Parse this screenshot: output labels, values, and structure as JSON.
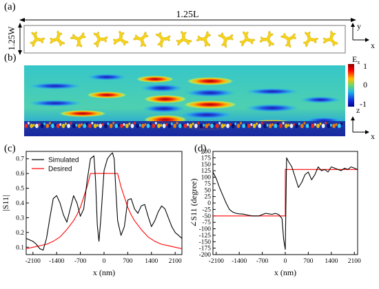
{
  "panel_a": {
    "letter": "(a)",
    "width_label": "1.25L",
    "height_label": "1.25W",
    "axis_y": "y",
    "axis_x": "x",
    "element_count": 15,
    "element_color": "#f4d21e"
  },
  "panel_b": {
    "letter": "(b)",
    "colorbar_title": "E",
    "colorbar_sub": "x",
    "colorbar_ticks": [
      "1",
      "0",
      "-1"
    ],
    "axis_z": "z",
    "axis_x": "x"
  },
  "chart_data": [
    {
      "panel": "(c)",
      "type": "line",
      "xlabel": "x (nm)",
      "ylabel": "|S11|",
      "xlim": [
        -2300,
        2300
      ],
      "ylim": [
        0.05,
        0.75
      ],
      "xticks": [
        -2100,
        -1400,
        -700,
        0,
        700,
        1400,
        2100
      ],
      "xtick_labels": [
        "-2100",
        "-1400",
        "-700",
        "0",
        "700",
        "1400",
        "2100"
      ],
      "yticks": [
        0.1,
        0.2,
        0.3,
        0.4,
        0.5,
        0.6,
        0.7
      ],
      "ytick_labels": [
        "0.1",
        "0.2",
        "0.3",
        "0.4",
        "0.5",
        "0.6",
        "0.7"
      ],
      "legend": "top-left",
      "series": [
        {
          "name": "Simulated",
          "color": "#000000",
          "x": [
            -2300,
            -2200,
            -2100,
            -2000,
            -1900,
            -1800,
            -1700,
            -1600,
            -1500,
            -1400,
            -1300,
            -1200,
            -1100,
            -1000,
            -900,
            -800,
            -700,
            -600,
            -500,
            -400,
            -300,
            -250,
            -200,
            -150,
            -100,
            0,
            100,
            200,
            250,
            300,
            350,
            400,
            500,
            600,
            700,
            800,
            900,
            1000,
            1100,
            1200,
            1300,
            1400,
            1500,
            1600,
            1700,
            1800,
            1900,
            2000,
            2100,
            2200,
            2300
          ],
          "y": [
            0.16,
            0.15,
            0.14,
            0.12,
            0.09,
            0.08,
            0.16,
            0.3,
            0.43,
            0.45,
            0.4,
            0.32,
            0.27,
            0.36,
            0.45,
            0.4,
            0.31,
            0.36,
            0.55,
            0.7,
            0.72,
            0.55,
            0.25,
            0.14,
            0.28,
            0.62,
            0.7,
            0.73,
            0.74,
            0.7,
            0.48,
            0.28,
            0.18,
            0.24,
            0.42,
            0.43,
            0.36,
            0.33,
            0.38,
            0.39,
            0.31,
            0.24,
            0.28,
            0.34,
            0.38,
            0.36,
            0.3,
            0.24,
            0.2,
            0.18,
            0.16
          ]
        },
        {
          "name": "Desired",
          "color": "#ff0000",
          "x": [
            -2300,
            -2100,
            -1900,
            -1700,
            -1500,
            -1300,
            -1100,
            -900,
            -800,
            -700,
            -600,
            -500,
            -400,
            -300,
            -200,
            0,
            200,
            300,
            400,
            500,
            600,
            700,
            800,
            900,
            1100,
            1300,
            1500,
            1700,
            1900,
            2100,
            2300
          ],
          "y": [
            0.09,
            0.1,
            0.11,
            0.12,
            0.14,
            0.17,
            0.22,
            0.28,
            0.32,
            0.37,
            0.44,
            0.51,
            0.6,
            0.6,
            0.6,
            0.6,
            0.6,
            0.6,
            0.6,
            0.51,
            0.44,
            0.37,
            0.32,
            0.28,
            0.22,
            0.17,
            0.14,
            0.12,
            0.11,
            0.1,
            0.09
          ]
        }
      ]
    },
    {
      "panel": "(d)",
      "type": "line",
      "xlabel": "x (nm)",
      "ylabel": "∠S11 (degree)",
      "xlim": [
        -2200,
        2200
      ],
      "ylim": [
        -200,
        200
      ],
      "xticks": [
        -2100,
        -1400,
        -700,
        0,
        700,
        1400,
        2100
      ],
      "xtick_labels": [
        "-2100",
        "-1400",
        "-700",
        "0",
        "700",
        "1400",
        "2100"
      ],
      "yticks": [
        -200,
        -175,
        -150,
        -125,
        -100,
        -75,
        -50,
        -25,
        0,
        25,
        50,
        75,
        100,
        125,
        150,
        175,
        200
      ],
      "ytick_labels": [
        "-200",
        "-175",
        "-150",
        "-125",
        "-100",
        "-75",
        "-50",
        "-25",
        "0",
        "25",
        "50",
        "75",
        "100",
        "125",
        "150",
        "175",
        "200"
      ],
      "series": [
        {
          "name": "",
          "color": "#000000",
          "x": [
            -2200,
            -2100,
            -2000,
            -1900,
            -1800,
            -1700,
            -1600,
            -1500,
            -1400,
            -1300,
            -1200,
            -1100,
            -1000,
            -900,
            -800,
            -700,
            -600,
            -500,
            -400,
            -300,
            -200,
            -100,
            -50,
            0,
            40,
            100,
            200,
            300,
            400,
            500,
            600,
            700,
            800,
            900,
            1000,
            1100,
            1200,
            1300,
            1400,
            1500,
            1600,
            1700,
            1800,
            1900,
            2000,
            2100,
            2200
          ],
          "y": [
            120,
            95,
            60,
            30,
            0,
            -25,
            -35,
            -40,
            -42,
            -43,
            -45,
            -48,
            -50,
            -50,
            -50,
            -45,
            -40,
            -42,
            -44,
            -40,
            -45,
            -60,
            -140,
            -180,
            175,
            160,
            140,
            100,
            60,
            80,
            110,
            120,
            90,
            110,
            140,
            125,
            130,
            120,
            140,
            135,
            130,
            125,
            135,
            130,
            140,
            135,
            130
          ]
        },
        {
          "name": "",
          "color": "#ff0000",
          "x": [
            -2200,
            0,
            0,
            2200
          ],
          "y": [
            -50,
            -50,
            130,
            130
          ]
        }
      ]
    }
  ]
}
